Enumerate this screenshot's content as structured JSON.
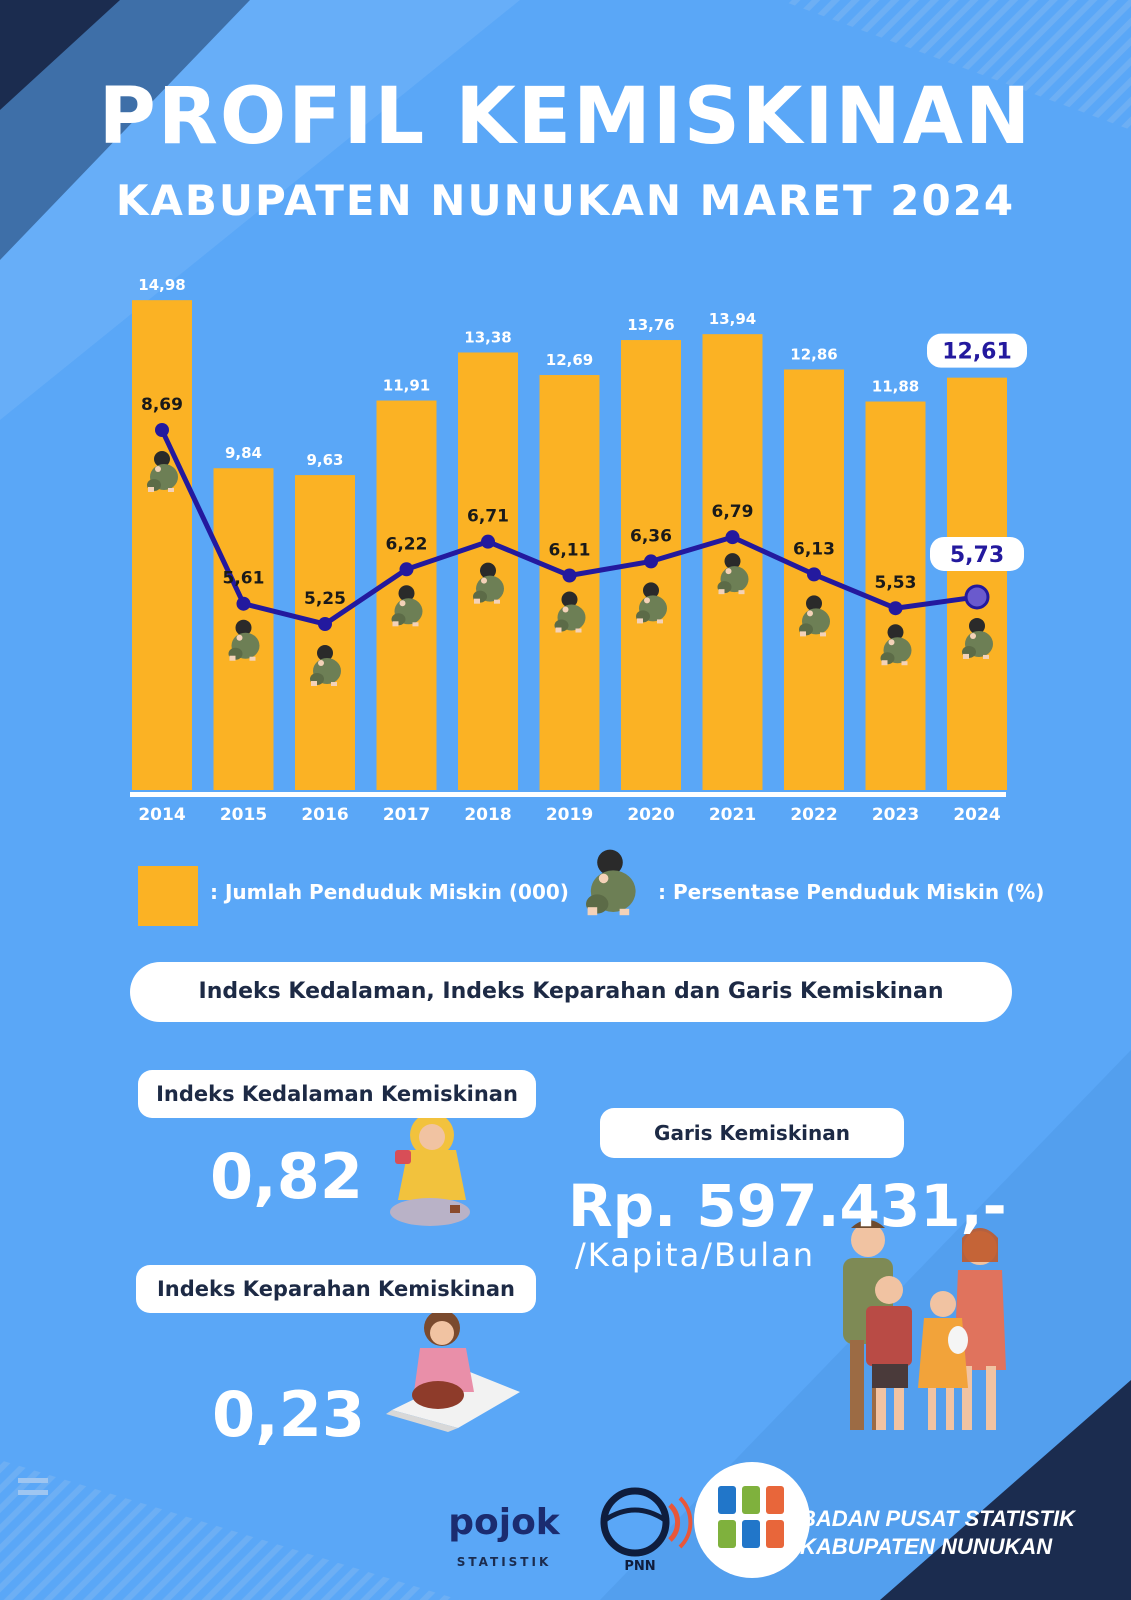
{
  "header": {
    "title": "PROFIL KEMISKINAN",
    "subtitle": "KABUPATEN NUNUKAN MARET 2024"
  },
  "colors": {
    "background": "#5aa7f7",
    "bar": "#fbb224",
    "line": "#23199e",
    "text": "#ffffff",
    "pill_text": "#1d2a45",
    "corner_dark": "#1b2c4f"
  },
  "chart_data": {
    "type": "bar",
    "categories": [
      "2014",
      "2015",
      "2016",
      "2017",
      "2018",
      "2019",
      "2020",
      "2021",
      "2022",
      "2023",
      "2024"
    ],
    "series": [
      {
        "name": ": Jumlah Penduduk Miskin (000)",
        "type": "bar",
        "values": [
          14.98,
          9.84,
          9.63,
          11.91,
          13.38,
          12.69,
          13.76,
          13.94,
          12.86,
          11.88,
          12.61
        ],
        "labels": [
          "14,98",
          "9,84",
          "9,63",
          "11,91",
          "13,38",
          "12,69",
          "13,76",
          "13,94",
          "12,86",
          "11,88",
          "12,61"
        ]
      },
      {
        "name": ": Persentase Penduduk Miskin (%)",
        "type": "line",
        "values": [
          8.69,
          5.61,
          5.25,
          6.22,
          6.71,
          6.11,
          6.36,
          6.79,
          6.13,
          5.53,
          5.73
        ],
        "labels": [
          "8,69",
          "5,61",
          "5,25",
          "6,22",
          "6,71",
          "6,11",
          "6,36",
          "6,79",
          "6,13",
          "5,53",
          "5,73"
        ]
      }
    ],
    "highlight_category": "2024",
    "legend_icon": "sad-person-icon"
  },
  "legend": {
    "bar_label": ": Jumlah Penduduk Miskin (000)",
    "line_label": ": Persentase Penduduk Miskin (%)"
  },
  "section": {
    "title": "Indeks Kedalaman, Indeks Keparahan dan Garis Kemiskinan"
  },
  "indeks_kedalaman": {
    "label": "Indeks Kedalaman Kemiskinan",
    "value": "0,82",
    "icon": "beggar-with-cup-icon"
  },
  "indeks_keparahan": {
    "label": "Indeks Keparahan Kemiskinan",
    "value": "0,23",
    "icon": "sitting-girl-icon"
  },
  "garis_kemiskinan": {
    "label": "Garis Kemiskinan",
    "value": "Rp. 597.431,-",
    "unit": "/Kapita/Bulan",
    "icon": "poor-family-icon"
  },
  "footer": {
    "logo1_top": "pojok",
    "logo1_bottom": "STATISTIK",
    "logo2_text": "PNN",
    "org_line1": "BADAN PUSAT STATISTIK",
    "org_line2": "KABUPATEN NUNUKAN"
  }
}
